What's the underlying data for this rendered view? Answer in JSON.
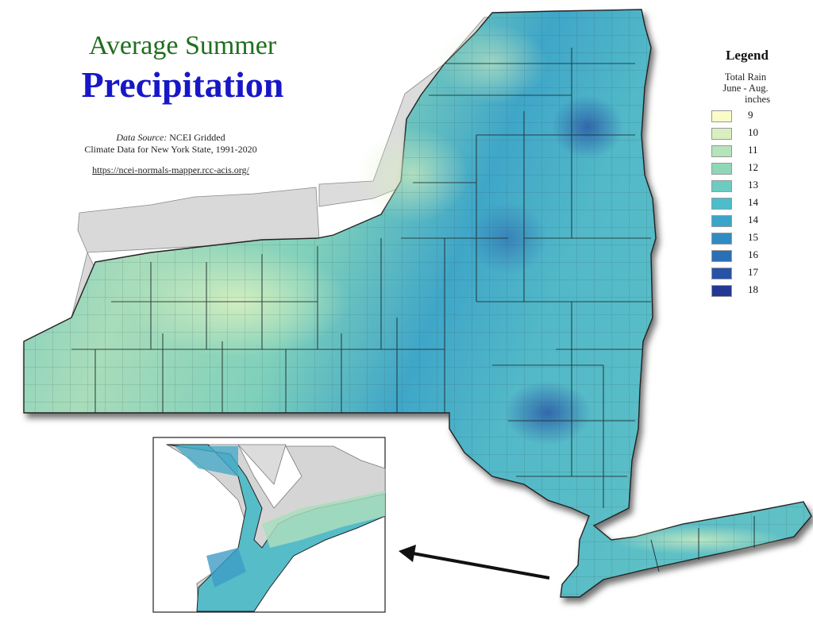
{
  "title": {
    "line1": "Average Summer",
    "line2": "Precipitation"
  },
  "source": {
    "label": "Data Source:",
    "text1": "NCEI Gridded",
    "text2": "Climate Data for New York State, 1991-2020",
    "url": "https://ncei-normals-mapper.rcc-acis.org/"
  },
  "legend": {
    "title": "Legend",
    "subtitle1": "Total Rain",
    "subtitle2": "June - Aug.",
    "subtitle3": "inches",
    "items": [
      {
        "label": "9",
        "color": "#fbfbc8"
      },
      {
        "label": "10",
        "color": "#d9efc0"
      },
      {
        "label": "11",
        "color": "#b5e3bb"
      },
      {
        "label": "12",
        "color": "#8ed8b8"
      },
      {
        "label": "13",
        "color": "#6ccbc3"
      },
      {
        "label": "14",
        "color": "#4bbdcb"
      },
      {
        "label": "14",
        "color": "#3aa5c9"
      },
      {
        "label": "15",
        "color": "#2f8bc1"
      },
      {
        "label": "16",
        "color": "#2a6fb5"
      },
      {
        "label": "17",
        "color": "#2752a6"
      },
      {
        "label": "18",
        "color": "#233894"
      }
    ]
  },
  "colors": {
    "land": "#63c6bf",
    "lake": "#dedede",
    "title_green": "#1f6e1f",
    "title_blue": "#1717c8"
  },
  "icons": [
    "arrow-icon"
  ]
}
